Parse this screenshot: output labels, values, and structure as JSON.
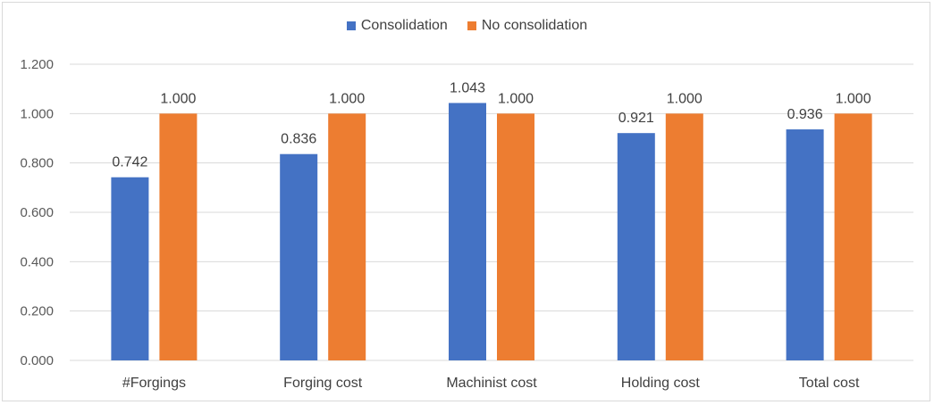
{
  "chart_data": {
    "type": "bar",
    "categories": [
      "#Forgings",
      "Forging cost",
      "Machinist cost",
      "Holding cost",
      "Total cost"
    ],
    "series": [
      {
        "name": "Consolidation",
        "values": [
          0.742,
          0.836,
          1.043,
          0.921,
          0.936
        ],
        "labels": [
          "0.742",
          "0.836",
          "1.043",
          "0.921",
          "0.936"
        ],
        "color": "#4472c4"
      },
      {
        "name": "No consolidation",
        "values": [
          1.0,
          1.0,
          1.0,
          1.0,
          1.0
        ],
        "labels": [
          "1.000",
          "1.000",
          "1.000",
          "1.000",
          "1.000"
        ],
        "color": "#ed7d31"
      }
    ],
    "ylim": [
      0,
      1.2
    ],
    "yticks": [
      0,
      0.2,
      0.4,
      0.6,
      0.8,
      1.0,
      1.2
    ],
    "ytick_labels": [
      "0.000",
      "0.200",
      "0.400",
      "0.600",
      "0.800",
      "1.000",
      "1.200"
    ],
    "grid": true,
    "legend_position": "top-center",
    "gridline_color": "#d9d9d9"
  }
}
